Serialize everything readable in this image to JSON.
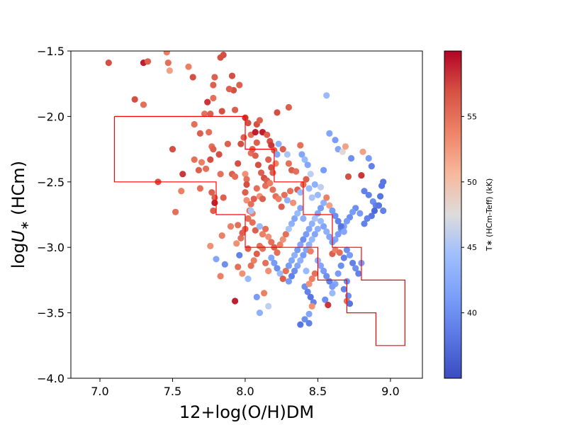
{
  "chart_data": {
    "type": "scatter",
    "title": "",
    "xlabel_main": "12+log(O/H)DM",
    "ylabel": {
      "prefix": "log",
      "symbol": "U",
      "subscript": "∗",
      "suffix": " (HCm)"
    },
    "xlim": [
      6.8,
      9.22
    ],
    "ylim": [
      -4.0,
      -1.5
    ],
    "xticks": [
      7.0,
      7.5,
      8.0,
      8.5,
      9.0
    ],
    "xtick_labels": [
      "7.0",
      "7.5",
      "8.0",
      "8.5",
      "9.0"
    ],
    "yticks": [
      -4.0,
      -3.5,
      -3.0,
      -2.5,
      -2.0,
      -1.5
    ],
    "ytick_labels": [
      "−4.0",
      "−3.5",
      "−3.0",
      "−2.5",
      "−2.0",
      "−1.5"
    ],
    "colorbar": {
      "label": "T∗ (HCm-Teff) (kK)",
      "range": [
        35,
        60
      ],
      "ticks": [
        40,
        45,
        50,
        55
      ],
      "tick_labels": [
        "40",
        "45",
        "50",
        "55"
      ],
      "colormap": "coolwarm"
    },
    "boundary": {
      "color": "#ff0000",
      "points": [
        [
          7.1,
          -2.0
        ],
        [
          8.0,
          -2.0
        ],
        [
          8.0,
          -2.25
        ],
        [
          8.2,
          -2.25
        ],
        [
          8.2,
          -2.5
        ],
        [
          8.4,
          -2.5
        ],
        [
          8.4,
          -2.75
        ],
        [
          8.6,
          -2.75
        ],
        [
          8.6,
          -3.0
        ],
        [
          8.8,
          -3.0
        ],
        [
          8.8,
          -3.25
        ],
        [
          9.1,
          -3.25
        ],
        [
          9.1,
          -3.75
        ],
        [
          8.9,
          -3.75
        ],
        [
          8.9,
          -3.5
        ],
        [
          8.7,
          -3.5
        ],
        [
          8.7,
          -3.25
        ],
        [
          8.5,
          -3.25
        ],
        [
          8.5,
          -3.0
        ],
        [
          8.0,
          -3.0
        ],
        [
          8.0,
          -2.75
        ],
        [
          7.8,
          -2.75
        ],
        [
          7.8,
          -2.5
        ],
        [
          7.1,
          -2.5
        ],
        [
          7.1,
          -2.0
        ]
      ]
    },
    "points": [
      [
        7.06,
        -1.59,
        57
      ],
      [
        7.3,
        -1.59,
        59
      ],
      [
        7.33,
        -1.58,
        56
      ],
      [
        7.46,
        -1.51,
        54
      ],
      [
        7.47,
        -1.59,
        55
      ],
      [
        7.48,
        -1.65,
        52
      ],
      [
        7.61,
        -1.62,
        54
      ],
      [
        7.64,
        -1.7,
        57
      ],
      [
        7.24,
        -1.87,
        57
      ],
      [
        7.3,
        -1.91,
        55
      ],
      [
        7.83,
        -1.55,
        57
      ],
      [
        7.85,
        -1.53,
        57
      ],
      [
        7.79,
        -1.7,
        56
      ],
      [
        7.78,
        -1.76,
        56
      ],
      [
        7.91,
        -1.69,
        57
      ],
      [
        7.96,
        -1.76,
        56
      ],
      [
        7.92,
        -1.8,
        57
      ],
      [
        7.89,
        -1.79,
        56
      ],
      [
        7.78,
        -1.86,
        55
      ],
      [
        7.74,
        -1.89,
        58
      ],
      [
        7.72,
        -1.98,
        55
      ],
      [
        7.76,
        -1.98,
        56
      ],
      [
        7.84,
        -1.96,
        57
      ],
      [
        7.93,
        -1.95,
        56
      ],
      [
        8.0,
        -2.01,
        58
      ],
      [
        8.02,
        -2.05,
        57
      ],
      [
        8.08,
        -2.06,
        57
      ],
      [
        8.1,
        -2.03,
        56
      ],
      [
        8.22,
        -1.97,
        57
      ],
      [
        8.3,
        -1.93,
        56
      ],
      [
        7.65,
        -2.06,
        55
      ],
      [
        7.69,
        -2.13,
        56
      ],
      [
        7.75,
        -2.12,
        55
      ],
      [
        7.77,
        -2.23,
        55
      ],
      [
        7.78,
        -2.25,
        56
      ],
      [
        7.82,
        -2.29,
        57
      ],
      [
        7.88,
        -2.21,
        56
      ],
      [
        7.97,
        -2.21,
        57
      ],
      [
        7.99,
        -2.16,
        56
      ],
      [
        8.04,
        -2.14,
        55
      ],
      [
        8.08,
        -2.2,
        56
      ],
      [
        8.07,
        -2.12,
        59
      ],
      [
        8.12,
        -2.12,
        59
      ],
      [
        8.15,
        -2.14,
        56
      ],
      [
        8.17,
        -2.19,
        57
      ],
      [
        8.18,
        -2.22,
        58
      ],
      [
        8.2,
        -2.26,
        56
      ],
      [
        7.5,
        -2.25,
        57
      ],
      [
        7.65,
        -2.33,
        55
      ],
      [
        7.7,
        -2.35,
        54
      ],
      [
        7.68,
        -2.41,
        56
      ],
      [
        7.73,
        -2.4,
        55
      ],
      [
        7.76,
        -2.33,
        57
      ],
      [
        7.83,
        -2.44,
        55
      ],
      [
        7.91,
        -2.44,
        56
      ],
      [
        7.93,
        -2.46,
        55
      ],
      [
        7.95,
        -2.36,
        57
      ],
      [
        8.0,
        -2.44,
        53
      ],
      [
        8.01,
        -2.48,
        55
      ],
      [
        8.04,
        -2.28,
        55
      ],
      [
        8.05,
        -2.25,
        56
      ],
      [
        8.07,
        -2.3,
        56
      ],
      [
        8.09,
        -2.37,
        57
      ],
      [
        8.11,
        -2.43,
        56
      ],
      [
        8.13,
        -2.47,
        57
      ],
      [
        8.16,
        -2.33,
        56
      ],
      [
        8.18,
        -2.39,
        57
      ],
      [
        8.19,
        -2.43,
        56
      ],
      [
        8.21,
        -2.36,
        54
      ],
      [
        8.22,
        -2.29,
        42
      ],
      [
        8.23,
        -2.21,
        43
      ],
      [
        8.26,
        -2.25,
        56
      ],
      [
        8.29,
        -2.29,
        45
      ],
      [
        8.3,
        -2.36,
        55
      ],
      [
        8.32,
        -2.41,
        56
      ],
      [
        8.35,
        -2.42,
        55
      ],
      [
        8.39,
        -2.29,
        42
      ],
      [
        8.41,
        -2.33,
        44
      ],
      [
        8.43,
        -2.37,
        42
      ],
      [
        8.45,
        -2.44,
        46
      ],
      [
        8.38,
        -2.22,
        55
      ],
      [
        7.57,
        -2.44,
        58
      ],
      [
        7.4,
        -2.5,
        57
      ],
      [
        7.56,
        -2.57,
        54
      ],
      [
        7.69,
        -2.55,
        55
      ],
      [
        7.77,
        -2.58,
        56
      ],
      [
        7.79,
        -2.62,
        56
      ],
      [
        7.79,
        -2.66,
        59
      ],
      [
        7.78,
        -2.72,
        56
      ],
      [
        7.52,
        -2.73,
        55
      ],
      [
        7.85,
        -2.62,
        56
      ],
      [
        8.0,
        -2.58,
        56
      ],
      [
        8.01,
        -2.52,
        57
      ],
      [
        8.01,
        -2.64,
        53
      ],
      [
        8.04,
        -2.67,
        55
      ],
      [
        8.03,
        -2.72,
        55
      ],
      [
        8.05,
        -2.74,
        54
      ],
      [
        8.06,
        -2.63,
        56
      ],
      [
        8.08,
        -2.55,
        55
      ],
      [
        8.1,
        -2.61,
        53
      ],
      [
        8.12,
        -2.63,
        56
      ],
      [
        8.14,
        -2.53,
        55
      ],
      [
        8.15,
        -2.49,
        56
      ],
      [
        8.17,
        -2.51,
        54
      ],
      [
        8.19,
        -2.56,
        55
      ],
      [
        8.21,
        -2.61,
        55
      ],
      [
        8.23,
        -2.63,
        54
      ],
      [
        8.25,
        -2.69,
        56
      ],
      [
        8.27,
        -2.6,
        55
      ],
      [
        8.29,
        -2.64,
        43
      ],
      [
        8.31,
        -2.57,
        55
      ],
      [
        8.33,
        -2.66,
        53
      ],
      [
        8.36,
        -2.56,
        56
      ],
      [
        8.38,
        -2.58,
        44
      ],
      [
        8.4,
        -2.52,
        55
      ],
      [
        8.42,
        -2.48,
        56
      ],
      [
        8.44,
        -2.55,
        44
      ],
      [
        8.46,
        -2.62,
        45
      ],
      [
        8.48,
        -2.52,
        43
      ],
      [
        8.5,
        -2.6,
        44
      ],
      [
        8.52,
        -2.54,
        46
      ],
      [
        8.54,
        -2.41,
        41
      ],
      [
        8.56,
        -1.84,
        44
      ],
      [
        8.58,
        -2.13,
        42
      ],
      [
        8.62,
        -2.18,
        41
      ],
      [
        8.64,
        -2.25,
        42
      ],
      [
        8.67,
        -2.27,
        48
      ],
      [
        8.69,
        -2.23,
        52
      ],
      [
        8.73,
        -2.32,
        40
      ],
      [
        8.71,
        -2.46,
        57
      ],
      [
        8.81,
        -2.27,
        52
      ],
      [
        8.85,
        -2.32,
        41
      ],
      [
        8.87,
        -2.38,
        39
      ],
      [
        8.95,
        -2.5,
        38
      ],
      [
        8.94,
        -2.53,
        38
      ],
      [
        8.8,
        -2.45,
        58
      ],
      [
        8.82,
        -2.57,
        39
      ],
      [
        8.85,
        -2.6,
        39
      ],
      [
        8.88,
        -2.65,
        40
      ],
      [
        8.9,
        -2.68,
        39
      ],
      [
        8.93,
        -2.61,
        38
      ],
      [
        8.95,
        -2.72,
        39
      ],
      [
        8.92,
        -2.68,
        38
      ],
      [
        8.89,
        -2.72,
        37
      ],
      [
        8.87,
        -2.76,
        38
      ],
      [
        8.84,
        -2.78,
        39
      ],
      [
        8.82,
        -2.82,
        39
      ],
      [
        8.79,
        -2.74,
        41
      ],
      [
        8.76,
        -2.7,
        40
      ],
      [
        8.74,
        -2.73,
        41
      ],
      [
        8.72,
        -2.77,
        40
      ],
      [
        8.7,
        -2.8,
        41
      ],
      [
        8.68,
        -2.84,
        42
      ],
      [
        8.66,
        -2.86,
        40
      ],
      [
        8.64,
        -2.9,
        41
      ],
      [
        8.62,
        -2.94,
        42
      ],
      [
        8.6,
        -2.96,
        41
      ],
      [
        8.58,
        -2.92,
        42
      ],
      [
        8.56,
        -2.88,
        43
      ],
      [
        8.54,
        -2.84,
        42
      ],
      [
        8.52,
        -2.8,
        44
      ],
      [
        8.5,
        -2.86,
        43
      ],
      [
        8.48,
        -2.9,
        42
      ],
      [
        8.46,
        -2.94,
        44
      ],
      [
        8.44,
        -2.98,
        43
      ],
      [
        8.42,
        -3.02,
        42
      ],
      [
        8.4,
        -3.06,
        41
      ],
      [
        8.38,
        -3.1,
        43
      ],
      [
        8.36,
        -3.14,
        42
      ],
      [
        8.34,
        -3.18,
        40
      ],
      [
        8.32,
        -3.22,
        39
      ],
      [
        8.3,
        -3.26,
        41
      ],
      [
        8.41,
        -3.3,
        40
      ],
      [
        8.43,
        -3.34,
        39
      ],
      [
        8.45,
        -3.38,
        38
      ],
      [
        8.47,
        -3.42,
        39
      ],
      [
        8.55,
        -3.4,
        40
      ],
      [
        8.57,
        -3.44,
        58
      ],
      [
        8.6,
        -3.35,
        44
      ],
      [
        8.62,
        -3.28,
        42
      ],
      [
        8.64,
        -3.2,
        41
      ],
      [
        8.66,
        -3.14,
        40
      ],
      [
        8.68,
        -3.08,
        39
      ],
      [
        8.7,
        -3.02,
        40
      ],
      [
        8.72,
        -3.06,
        41
      ],
      [
        8.74,
        -3.12,
        39
      ],
      [
        8.76,
        -3.16,
        40
      ],
      [
        8.78,
        -3.2,
        39
      ],
      [
        8.8,
        -3.12,
        41
      ],
      [
        8.7,
        -3.26,
        40
      ],
      [
        8.68,
        -3.32,
        39
      ],
      [
        8.71,
        -3.37,
        40
      ],
      [
        8.7,
        -3.41,
        55
      ],
      [
        8.72,
        -3.43,
        38
      ],
      [
        8.6,
        -3.05,
        56
      ],
      [
        8.62,
        -3.02,
        54
      ],
      [
        8.65,
        -3.04,
        55
      ],
      [
        8.45,
        -3.03,
        54
      ],
      [
        8.41,
        -3.55,
        40
      ],
      [
        8.44,
        -3.51,
        42
      ],
      [
        8.38,
        -3.59,
        38
      ],
      [
        8.44,
        -3.58,
        39
      ],
      [
        8.46,
        -3.45,
        53
      ],
      [
        8.13,
        -3.35,
        54
      ],
      [
        8.16,
        -3.45,
        46
      ],
      [
        8.1,
        -3.5,
        43
      ],
      [
        7.93,
        -3.41,
        59
      ],
      [
        8.08,
        -3.38,
        41
      ],
      [
        8.02,
        -3.24,
        44
      ],
      [
        7.98,
        -3.2,
        53
      ],
      [
        7.95,
        -3.15,
        55
      ],
      [
        7.96,
        -3.06,
        39
      ],
      [
        7.83,
        -3.22,
        54
      ],
      [
        7.8,
        -3.09,
        42
      ],
      [
        7.86,
        -3.13,
        40
      ],
      [
        7.76,
        -2.99,
        53
      ],
      [
        7.94,
        -2.97,
        53
      ],
      [
        7.95,
        -2.83,
        55
      ],
      [
        7.97,
        -2.93,
        55
      ],
      [
        7.98,
        -2.89,
        56
      ],
      [
        7.9,
        -2.84,
        54
      ],
      [
        7.84,
        -2.91,
        54
      ],
      [
        8.0,
        -2.86,
        56
      ],
      [
        8.02,
        -2.78,
        55
      ],
      [
        8.04,
        -2.72,
        45
      ],
      [
        8.05,
        -2.81,
        55
      ],
      [
        8.07,
        -2.87,
        56
      ],
      [
        8.1,
        -2.84,
        44
      ],
      [
        8.12,
        -2.9,
        54
      ],
      [
        8.14,
        -2.86,
        55
      ],
      [
        8.16,
        -2.92,
        53
      ],
      [
        8.18,
        -2.96,
        55
      ],
      [
        8.2,
        -3.0,
        56
      ],
      [
        8.22,
        -3.04,
        55
      ],
      [
        8.24,
        -2.98,
        54
      ],
      [
        8.26,
        -2.94,
        53
      ],
      [
        8.28,
        -2.9,
        55
      ],
      [
        8.3,
        -2.86,
        45
      ],
      [
        8.32,
        -2.82,
        43
      ],
      [
        8.34,
        -2.78,
        42
      ],
      [
        8.36,
        -2.74,
        44
      ],
      [
        8.38,
        -2.7,
        42
      ],
      [
        8.4,
        -2.78,
        43
      ],
      [
        8.1,
        -2.99,
        55
      ],
      [
        8.12,
        -3.01,
        55
      ],
      [
        8.08,
        -3.05,
        56
      ],
      [
        8.06,
        -3.1,
        54
      ],
      [
        8.04,
        -3.14,
        55
      ],
      [
        8.02,
        -3.01,
        56
      ],
      [
        8.14,
        -3.12,
        55
      ],
      [
        8.16,
        -3.18,
        53
      ],
      [
        8.18,
        -3.08,
        42
      ],
      [
        8.2,
        -3.12,
        41
      ],
      [
        8.22,
        -3.16,
        40
      ],
      [
        8.24,
        -3.2,
        44
      ],
      [
        8.26,
        -3.24,
        56
      ],
      [
        8.28,
        -3.18,
        55
      ],
      [
        8.3,
        -3.14,
        41
      ],
      [
        8.32,
        -3.1,
        42
      ],
      [
        8.34,
        -3.06,
        43
      ],
      [
        8.36,
        -3.02,
        41
      ],
      [
        8.38,
        -2.98,
        42
      ],
      [
        8.4,
        -2.94,
        40
      ],
      [
        8.42,
        -2.9,
        41
      ],
      [
        8.44,
        -2.86,
        42
      ],
      [
        8.46,
        -2.82,
        43
      ],
      [
        8.48,
        -2.78,
        45
      ],
      [
        8.5,
        -2.74,
        42
      ],
      [
        8.52,
        -2.7,
        41
      ],
      [
        8.54,
        -2.66,
        43
      ],
      [
        8.56,
        -2.62,
        54
      ],
      [
        8.58,
        -2.68,
        52
      ],
      [
        8.6,
        -2.72,
        41
      ],
      [
        8.62,
        -2.76,
        40
      ],
      [
        8.64,
        -2.8,
        39
      ],
      [
        8.66,
        -2.84,
        38
      ],
      [
        8.68,
        -2.88,
        42
      ],
      [
        8.5,
        -3.1,
        43
      ],
      [
        8.52,
        -3.14,
        42
      ],
      [
        8.54,
        -3.18,
        41
      ],
      [
        8.56,
        -3.22,
        40
      ],
      [
        8.58,
        -3.26,
        39
      ],
      [
        8.6,
        -3.3,
        41
      ],
      [
        8.48,
        -3.2,
        55
      ],
      [
        8.46,
        -3.24,
        54
      ],
      [
        8.44,
        -3.28,
        53
      ],
      [
        8.42,
        -3.18,
        44
      ]
    ]
  }
}
